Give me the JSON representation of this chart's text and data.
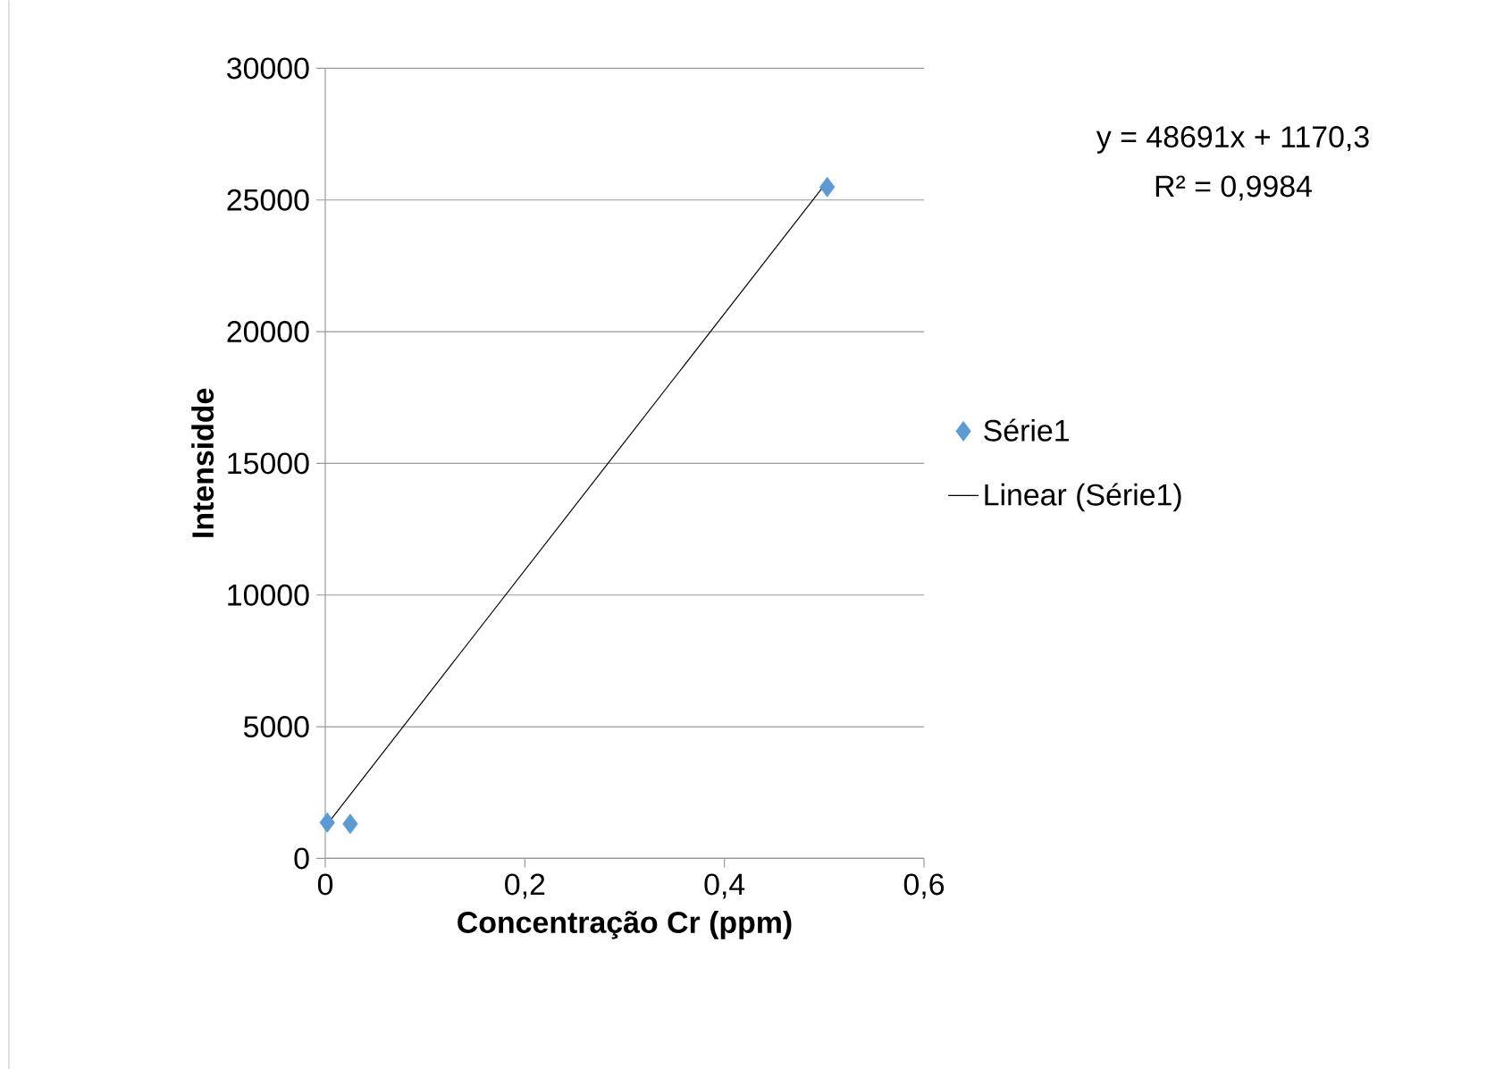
{
  "chart_data": {
    "type": "scatter",
    "xlabel": "Concentração Cr (ppm)",
    "ylabel": "Intensidde",
    "annotations": [
      "y = 48691x  + 1170,3",
      "R² = 0,9984"
    ],
    "xlim": [
      0,
      0.6
    ],
    "ylim": [
      0,
      30000
    ],
    "xticks": [
      0,
      {
        "value": 0.2,
        "label": "0,2"
      },
      {
        "value": 0.4,
        "label": "0,4"
      },
      {
        "value": 0.6,
        "label": "0,6"
      }
    ],
    "yticks": [
      0,
      5000,
      10000,
      15000,
      20000,
      25000,
      30000
    ],
    "grid": "y",
    "legend": "right",
    "marker": "diamond",
    "series": [
      {
        "name": "Série1",
        "color": "#5b9bd5",
        "x": [
          0.002,
          0.025,
          0.503
        ],
        "values": [
          1360,
          1310,
          25490
        ]
      },
      {
        "name": "Linear (Série1)",
        "type": "line",
        "color": "#000000",
        "marker": "none",
        "line_style": "solid",
        "x": [
          0.002,
          0.503
        ],
        "values": [
          1300,
          25700
        ]
      }
    ]
  }
}
